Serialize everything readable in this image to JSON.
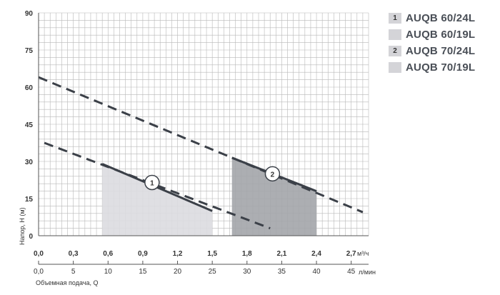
{
  "chart_data": {
    "type": "line",
    "title": "",
    "ylabel": "Напор, H (м)",
    "xlabel_bottom": "Объемная подача, Q",
    "x_unit_top": "м³/ч",
    "x_unit_bottom": "л/мин",
    "xlim": [
      0,
      2.85
    ],
    "ylim": [
      0,
      90
    ],
    "x_ticks": [
      0.0,
      0.3,
      0.6,
      0.9,
      1.2,
      1.5,
      1.8,
      2.1,
      2.4,
      2.7
    ],
    "x_tick_labels": [
      "0,0",
      "0,3",
      "0,6",
      "0,9",
      "1,2",
      "1,5",
      "1,8",
      "2,1",
      "2,4",
      "2,7"
    ],
    "x2_ticks": [
      0,
      5,
      10,
      15,
      20,
      25,
      30,
      35,
      40,
      45
    ],
    "x2_tick_labels": [
      "0,0",
      "5",
      "10",
      "15",
      "20",
      "25",
      "30",
      "35",
      "40",
      "45"
    ],
    "y_ticks": [
      0,
      15,
      30,
      45,
      60,
      75,
      90
    ],
    "y_tick_labels": [
      "0",
      "15",
      "30",
      "45",
      "60",
      "75",
      "90"
    ],
    "grid": true,
    "legend_position": "top-right",
    "series": [
      {
        "name": "AUQB 60/24L",
        "label": "1",
        "style": "solid",
        "x": [
          0.55,
          1.5
        ],
        "y": [
          29,
          10
        ]
      },
      {
        "name": "AUQB 60/19L",
        "style": "dashed",
        "x": [
          0.05,
          2.0
        ],
        "y": [
          37.5,
          3
        ]
      },
      {
        "name": "AUQB 70/24L",
        "label": "2",
        "style": "solid",
        "x": [
          1.67,
          2.4
        ],
        "y": [
          31.5,
          18
        ]
      },
      {
        "name": "AUQB 70/19L",
        "style": "dashed",
        "x": [
          0.0,
          2.8
        ],
        "y": [
          64,
          9.5
        ]
      }
    ],
    "areas": [
      {
        "series": "AUQB 60/24L",
        "x": [
          0.55,
          1.5
        ],
        "y_top": [
          29,
          10
        ],
        "fill": "#dcdce0"
      },
      {
        "series": "AUQB 70/24L",
        "x": [
          1.67,
          2.4
        ],
        "y_top": [
          31.5,
          18
        ],
        "fill": "#a3a5aa"
      }
    ],
    "markers": [
      {
        "text": "1",
        "x": 0.98,
        "y": 21.5
      },
      {
        "text": "2",
        "x": 2.02,
        "y": 25
      }
    ]
  },
  "legend": [
    {
      "label_num": "1",
      "text": "AUQB 60/24L"
    },
    {
      "label_num": "",
      "text": "AUQB 60/19L"
    },
    {
      "label_num": "2",
      "text": "AUQB 70/24L"
    },
    {
      "label_num": "",
      "text": "AUQB 70/19L"
    }
  ],
  "colors": {
    "line": "#3b4048",
    "grid": "#b8b8b8",
    "axis": "#555555"
  }
}
